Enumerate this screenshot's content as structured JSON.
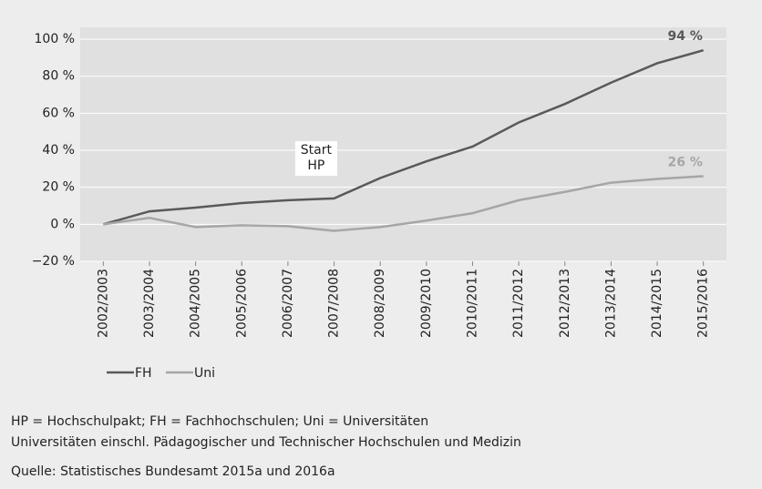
{
  "chart_data": {
    "type": "line",
    "categories": [
      "2002/2003",
      "2003/2004",
      "2004/2005",
      "2005/2006",
      "2006/2007",
      "2007/2008",
      "2008/2009",
      "2009/2010",
      "2010/2011",
      "2011/2012",
      "2012/2013",
      "2013/2014",
      "2014/2015",
      "2015/2016"
    ],
    "series": [
      {
        "name": "FH",
        "color": "#595959",
        "values": [
          0,
          7,
          9,
          11.5,
          13,
          14,
          25,
          34,
          42,
          55,
          65,
          76.5,
          87,
          94
        ],
        "value_labels": [
          null,
          null,
          null,
          null,
          null,
          null,
          null,
          null,
          null,
          null,
          null,
          null,
          null,
          "94 %"
        ]
      },
      {
        "name": "Uni",
        "color": "#a6a6a6",
        "values": [
          0,
          3.5,
          -1.5,
          -0.5,
          -1,
          -3.5,
          -1.5,
          2,
          6,
          13,
          17.5,
          22.5,
          24.5,
          26
        ],
        "value_labels": [
          null,
          null,
          null,
          null,
          null,
          null,
          null,
          null,
          null,
          null,
          null,
          null,
          null,
          "26 %"
        ]
      }
    ],
    "ylim": [
      -20,
      100
    ],
    "yticks": [
      {
        "value": -20,
        "label": "−20 %"
      },
      {
        "value": 0,
        "label": "0 %"
      },
      {
        "value": 20,
        "label": "20 %"
      },
      {
        "value": 40,
        "label": "40 %"
      },
      {
        "value": 60,
        "label": "60 %"
      },
      {
        "value": 80,
        "label": "80 %"
      },
      {
        "value": 100,
        "label": "100 %"
      }
    ],
    "grid": true,
    "annotation": {
      "lines": [
        "Start",
        "HP"
      ],
      "category": "2006/2007"
    },
    "notes": [
      "HP = Hochschulpakt; FH = Fachhochschulen; Uni = Universitäten",
      "Universitäten einschl. Pädagogischer und Technischer Hochschulen und Medizin",
      "Quelle: Statistisches Bundesamt 2015a und 2016a"
    ]
  }
}
